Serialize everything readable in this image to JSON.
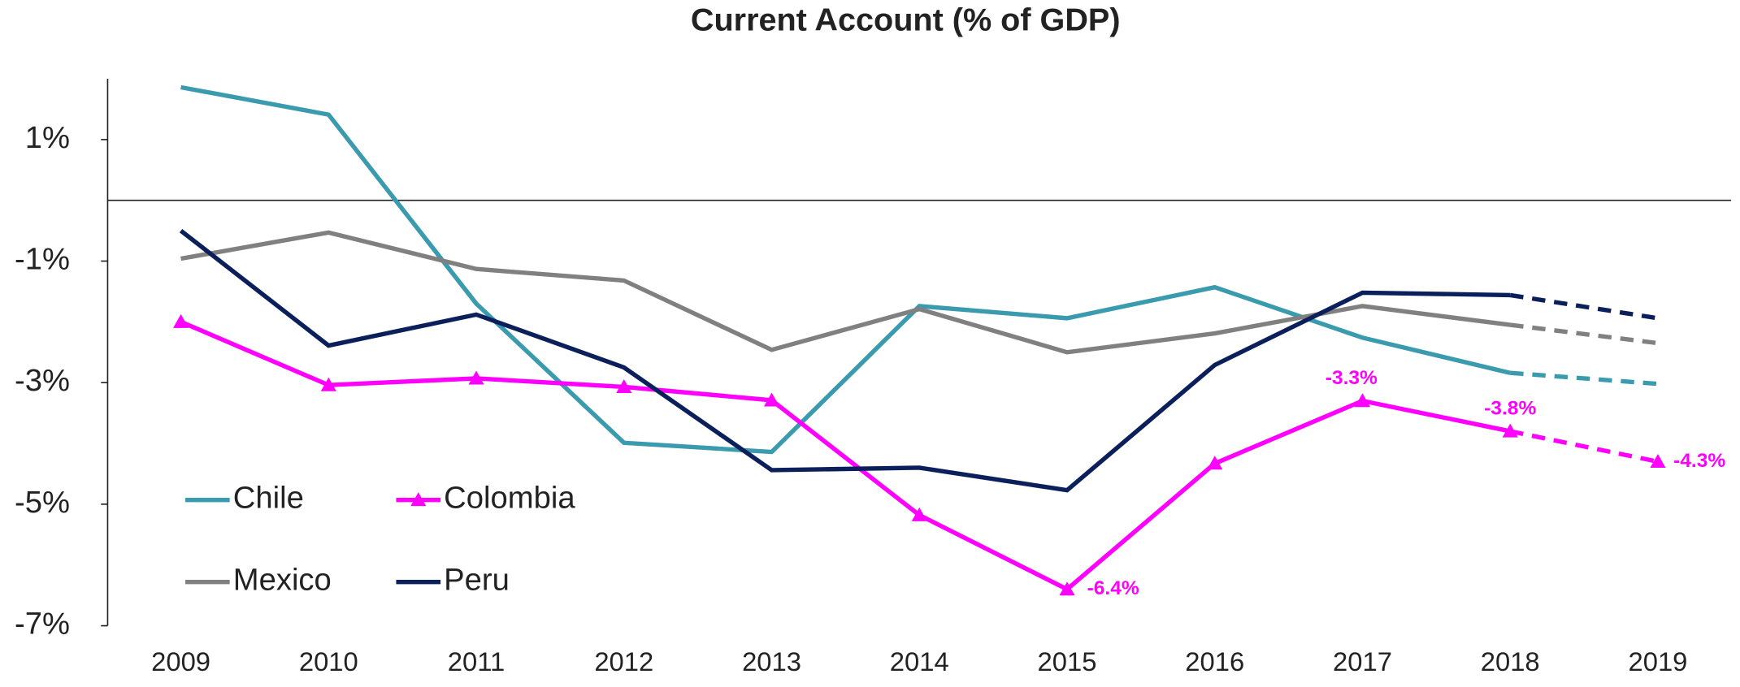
{
  "chart_data": {
    "type": "line",
    "title": "Current Account (% of GDP)",
    "categories": [
      "2009",
      "2010",
      "2011",
      "2012",
      "2013",
      "2014",
      "2015",
      "2016",
      "2017",
      "2018",
      "2019"
    ],
    "forecast_start": "2018",
    "ylim": [
      -7,
      2
    ],
    "yticks": [
      {
        "value": -7,
        "label": "-7%"
      },
      {
        "value": -5,
        "label": "-5%"
      },
      {
        "value": -3,
        "label": "-3%"
      },
      {
        "value": -1,
        "label": "-1%"
      },
      {
        "value": 1,
        "label": "1%"
      }
    ],
    "series": [
      {
        "name": "Chile",
        "color": "#3a9aae",
        "values": [
          1.86,
          1.41,
          -1.7,
          -3.99,
          -4.14,
          -1.74,
          -1.94,
          -1.43,
          -2.26,
          -2.84,
          -3.02
        ]
      },
      {
        "name": "Colombia",
        "color": "#ff00ff",
        "marker": "triangle",
        "values": [
          -2.0,
          -3.04,
          -2.93,
          -3.07,
          -3.29,
          -5.18,
          -6.4,
          -4.33,
          -3.3,
          -3.8,
          -4.3
        ],
        "value_labels": [
          null,
          null,
          null,
          null,
          null,
          null,
          "-6.4%",
          null,
          "-3.3%",
          "-3.8%",
          "-4.3%"
        ]
      },
      {
        "name": "Mexico",
        "color": "#808080",
        "values": [
          -0.96,
          -0.53,
          -1.13,
          -1.32,
          -2.46,
          -1.79,
          -2.5,
          -2.19,
          -1.74,
          -2.05,
          -2.35
        ]
      },
      {
        "name": "Peru",
        "color": "#0b1f5a",
        "values": [
          -0.5,
          -2.39,
          -1.88,
          -2.75,
          -4.44,
          -4.4,
          -4.77,
          -2.71,
          -1.52,
          -1.56,
          -1.94
        ]
      }
    ]
  }
}
